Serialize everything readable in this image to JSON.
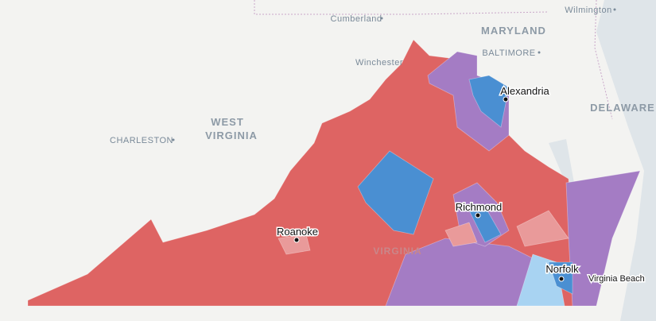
{
  "base_labels": [
    {
      "text": "Cumberland",
      "kind": "base"
    },
    {
      "text": "Wilmington",
      "kind": "base"
    },
    {
      "text": "Winchester",
      "kind": "base"
    },
    {
      "text": "BALTIMORE",
      "kind": "base"
    },
    {
      "text": "CHARLESTON",
      "kind": "base"
    },
    {
      "text": "MARYLAND",
      "kind": "state"
    },
    {
      "text": "DELAWARE",
      "kind": "state"
    },
    {
      "text": "WEST",
      "kind": "state"
    },
    {
      "text": "VIRGINIA",
      "kind": "state"
    },
    {
      "text": "VIRGINIA",
      "kind": "faint"
    }
  ],
  "city_labels": [
    "Alexandria",
    "Richmond",
    "Roanoke",
    "Norfolk",
    "Virginia Beach"
  ]
}
